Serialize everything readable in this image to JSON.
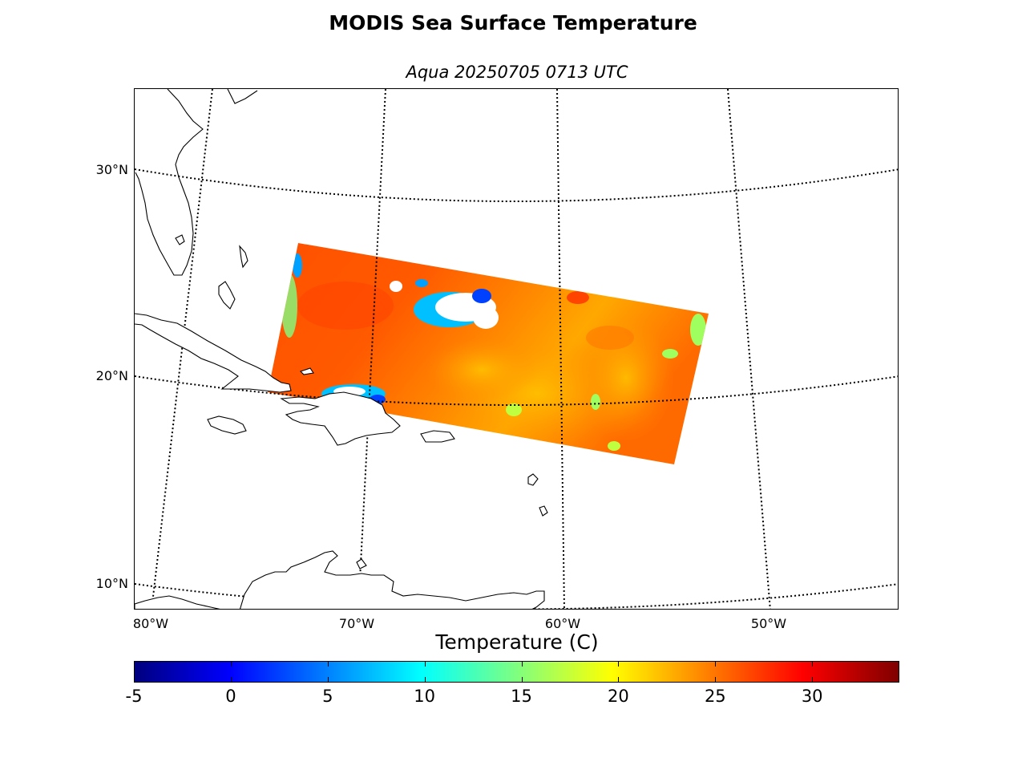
{
  "title": "MODIS Sea Surface Temperature",
  "subtitle": "Aqua 20250705 0713 UTC",
  "map": {
    "projection": "conic",
    "graticule_style": "dotted",
    "lat_labels": [
      "30°N",
      "20°N",
      "10°N"
    ],
    "lon_labels": [
      "80°W",
      "70°W",
      "60°W",
      "50°W"
    ],
    "coastline_color": "#000000",
    "land_fill": "#ffffff",
    "swath": {
      "satellite": "Aqua",
      "dominant_range_c": [
        24,
        30
      ],
      "no_data_color": "#ffffff"
    }
  },
  "colorbar": {
    "label": "Temperature (C)",
    "min": -5,
    "max": 34.5,
    "ticks": [
      "-5",
      "0",
      "5",
      "10",
      "15",
      "20",
      "25",
      "30"
    ],
    "colormap": "jet",
    "colors": [
      "#00007f",
      "#0000ff",
      "#007fff",
      "#00ffff",
      "#7fff7f",
      "#ffff00",
      "#ff7f00",
      "#ff0000",
      "#7f0000"
    ]
  }
}
